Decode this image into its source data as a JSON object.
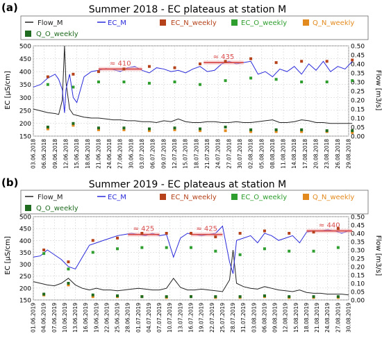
{
  "chart_data": [
    {
      "type": "line",
      "panel_label": "(a)",
      "title": "Summer 2018 - EC plateaus at station M",
      "ylabel": "EC [µS/cm]",
      "y2label": "Flow [m3/s]",
      "ylim": [
        150,
        500
      ],
      "y2lim": [
        0,
        0.5
      ],
      "yticks": [
        "150",
        "200",
        "250",
        "300",
        "350",
        "400",
        "450",
        "500"
      ],
      "y2ticks": [
        "0.00",
        "0.05",
        "0.10",
        "0.15",
        "0.20",
        "0.25",
        "0.30",
        "0.35",
        "0.40",
        "0.45",
        "0.50"
      ],
      "x_tick_labels": [
        "03.06.2018",
        "06.06.2018",
        "09.06.2018",
        "12.06.2018",
        "15.06.2018",
        "18.06.2018",
        "21.06.2018",
        "24.06.2018",
        "27.06.2018",
        "30.06.2018",
        "03.07.2018",
        "06.07.2018",
        "09.07.2018",
        "12.07.2018",
        "15.07.2018",
        "18.07.2018",
        "21.07.2018",
        "24.07.2018",
        "27.07.2018",
        "30.07.2018",
        "02.08.2018",
        "05.08.2018",
        "08.08.2018",
        "11.08.2018",
        "14.08.2018",
        "17.08.2018",
        "20.08.2018",
        "23.08.2018",
        "26.08.2018",
        "29.08.2018"
      ],
      "legend": [
        "Flow_M",
        "EC_M",
        "EC_N_weekly",
        "EC_O_weekly",
        "Q_N_weekly",
        "Q_O_weekly"
      ],
      "colors": {
        "flow": "#222222",
        "ec": "#2a2adb",
        "ec_n": "#b5421a",
        "ec_o": "#2e9e2e",
        "q_n": "#e38a1e",
        "q_o": "#1f6b1f",
        "plateau": "#d94a4a"
      },
      "plateaus": [
        {
          "label": "≈ 410",
          "value": 410,
          "day_start": 18,
          "day_end": 30
        },
        {
          "label": "≈ 435",
          "value": 435,
          "day_start": 47,
          "day_end": 58
        }
      ],
      "series": [
        {
          "name": "EC_M",
          "axis": "left",
          "x": [
            0,
            2,
            4,
            6,
            7,
            8,
            8.6,
            9,
            10,
            11,
            12,
            14,
            16,
            18,
            20,
            22,
            24,
            26,
            28,
            30,
            32,
            34,
            36,
            38,
            40,
            42,
            44,
            46,
            48,
            50,
            52,
            54,
            56,
            58,
            60,
            62,
            64,
            66,
            68,
            70,
            72,
            74,
            76,
            78,
            80,
            82,
            84,
            86,
            88
          ],
          "y": [
            340,
            350,
            375,
            390,
            370,
            330,
            240,
            330,
            390,
            300,
            280,
            380,
            400,
            405,
            412,
            408,
            400,
            415,
            420,
            405,
            395,
            415,
            410,
            400,
            405,
            395,
            410,
            420,
            400,
            405,
            430,
            440,
            430,
            435,
            440,
            390,
            400,
            380,
            410,
            400,
            420,
            390,
            430,
            405,
            440,
            400,
            420,
            410,
            440
          ]
        },
        {
          "name": "Flow_M",
          "axis": "right",
          "x": [
            0,
            2,
            4,
            6,
            7,
            8,
            8.6,
            9,
            10,
            11,
            12,
            14,
            16,
            18,
            20,
            22,
            24,
            26,
            28,
            30,
            32,
            34,
            36,
            38,
            40,
            42,
            44,
            46,
            48,
            50,
            52,
            54,
            56,
            58,
            60,
            62,
            64,
            66,
            68,
            70,
            72,
            74,
            76,
            78,
            80,
            82,
            84,
            86,
            88
          ],
          "y": [
            0.15,
            0.14,
            0.13,
            0.125,
            0.12,
            0.2,
            0.5,
            0.3,
            0.15,
            0.12,
            0.115,
            0.105,
            0.1,
            0.1,
            0.095,
            0.09,
            0.09,
            0.085,
            0.085,
            0.08,
            0.08,
            0.075,
            0.085,
            0.08,
            0.095,
            0.08,
            0.075,
            0.075,
            0.08,
            0.08,
            0.075,
            0.075,
            0.08,
            0.075,
            0.075,
            0.08,
            0.085,
            0.09,
            0.075,
            0.075,
            0.08,
            0.09,
            0.085,
            0.075,
            0.075,
            0.07,
            0.07,
            0.07,
            0.07
          ]
        },
        {
          "name": "EC_N_weekly",
          "axis": "left",
          "x": [
            4,
            11,
            18,
            25,
            32,
            39,
            46,
            53,
            60,
            67,
            74,
            81,
            88
          ],
          "y": [
            380,
            390,
            400,
            410,
            420,
            415,
            430,
            440,
            450,
            435,
            440,
            440,
            445
          ]
        },
        {
          "name": "EC_O_weekly",
          "axis": "left",
          "x": [
            4,
            11,
            18,
            25,
            32,
            39,
            46,
            53,
            60,
            67,
            74,
            81,
            88
          ],
          "y": [
            350,
            340,
            360,
            360,
            355,
            360,
            350,
            365,
            375,
            370,
            360,
            360,
            365
          ]
        },
        {
          "name": "Q_N_weekly",
          "axis": "right",
          "x": [
            4,
            11,
            18,
            25,
            32,
            39,
            46,
            53,
            60,
            67,
            74,
            81,
            88
          ],
          "y": [
            0.04,
            0.06,
            0.035,
            0.035,
            0.03,
            0.035,
            0.03,
            0.03,
            0.025,
            0.025,
            0.025,
            0.025,
            0.02
          ]
        },
        {
          "name": "Q_O_weekly",
          "axis": "right",
          "x": [
            4,
            11,
            18,
            25,
            32,
            39,
            46,
            53,
            60,
            67,
            74,
            81,
            88
          ],
          "y": [
            0.05,
            0.07,
            0.045,
            0.045,
            0.04,
            0.045,
            0.04,
            0.05,
            0.035,
            0.035,
            0.035,
            0.03,
            0.03
          ]
        }
      ]
    },
    {
      "type": "line",
      "panel_label": "(b)",
      "title": "Summer 2019 - EC plateaus at station M",
      "ylabel": "EC [µS/cm]",
      "y2label": "Flow [m3/s]",
      "ylim": [
        150,
        500
      ],
      "y2lim": [
        0,
        0.5
      ],
      "yticks": [
        "150",
        "200",
        "250",
        "300",
        "350",
        "400",
        "450",
        "500"
      ],
      "y2ticks": [
        "0.00",
        "0.05",
        "0.10",
        "0.15",
        "0.20",
        "0.25",
        "0.30",
        "0.35",
        "0.40",
        "0.45",
        "0.50"
      ],
      "x_tick_labels": [
        "01.06.2019",
        "04.06.2019",
        "07.06.2019",
        "10.06.2019",
        "13.06.2019",
        "16.06.2019",
        "19.06.2019",
        "22.06.2019",
        "25.06.2019",
        "28.06.2019",
        "01.07.2019",
        "04.07.2019",
        "07.07.2019",
        "10.07.2019",
        "13.07.2019",
        "16.07.2019",
        "19.07.2019",
        "22.07.2019",
        "25.07.2019",
        "28.07.2019",
        "31.07.2019",
        "03.08.2019",
        "06.08.2019",
        "09.08.2019",
        "12.08.2019",
        "15.08.2019",
        "18.08.2019",
        "21.08.2019",
        "24.08.2019",
        "27.08.2019",
        "30.08.2019"
      ],
      "legend": [
        "Flow_M",
        "EC_M",
        "EC_N_weekly",
        "EC_O_weekly",
        "Q_N_weekly",
        "Q_O_weekly"
      ],
      "colors": {
        "flow": "#222222",
        "ec": "#2a2adb",
        "ec_n": "#b5421a",
        "ec_o": "#2e9e2e",
        "q_n": "#e38a1e",
        "q_o": "#1f6b1f",
        "plateau": "#d94a4a"
      },
      "plateaus": [
        {
          "label": "≈ 425",
          "value": 425,
          "day_start": 27,
          "day_end": 36
        },
        {
          "label": "≈ 425",
          "value": 425,
          "day_start": 45,
          "day_end": 54
        },
        {
          "label": "≈ 440",
          "value": 440,
          "day_start": 78,
          "day_end": 91
        }
      ],
      "series": [
        {
          "name": "EC_M",
          "axis": "left",
          "x": [
            0,
            2,
            4,
            6,
            8,
            10,
            12,
            14,
            16,
            18,
            20,
            22,
            24,
            26,
            28,
            30,
            32,
            34,
            36,
            38,
            40,
            42,
            44,
            46,
            48,
            50,
            52,
            54,
            56,
            57,
            58,
            60,
            62,
            64,
            66,
            68,
            70,
            72,
            74,
            76,
            78,
            80,
            82,
            84,
            86,
            88,
            90
          ],
          "y": [
            330,
            335,
            360,
            340,
            320,
            290,
            280,
            330,
            380,
            390,
            400,
            410,
            420,
            425,
            430,
            425,
            420,
            430,
            420,
            425,
            330,
            410,
            430,
            425,
            420,
            425,
            430,
            460,
            310,
            260,
            400,
            410,
            420,
            390,
            430,
            420,
            400,
            410,
            420,
            390,
            435,
            440,
            440,
            445,
            440,
            430,
            440
          ]
        },
        {
          "name": "Flow_M",
          "axis": "right",
          "x": [
            0,
            2,
            4,
            6,
            8,
            10,
            12,
            14,
            16,
            18,
            20,
            22,
            24,
            26,
            28,
            30,
            32,
            34,
            36,
            38,
            40,
            42,
            44,
            46,
            48,
            50,
            52,
            54,
            56,
            57,
            58,
            60,
            62,
            64,
            66,
            68,
            70,
            72,
            74,
            76,
            78,
            80,
            82,
            84,
            86,
            88,
            90
          ],
          "y": [
            0.11,
            0.1,
            0.09,
            0.085,
            0.1,
            0.13,
            0.09,
            0.07,
            0.06,
            0.07,
            0.06,
            0.06,
            0.055,
            0.06,
            0.065,
            0.07,
            0.065,
            0.06,
            0.06,
            0.07,
            0.13,
            0.075,
            0.06,
            0.06,
            0.065,
            0.06,
            0.055,
            0.05,
            0.12,
            0.3,
            0.1,
            0.08,
            0.07,
            0.065,
            0.08,
            0.07,
            0.06,
            0.055,
            0.05,
            0.06,
            0.045,
            0.04,
            0.04,
            0.035,
            0.035,
            0.035,
            0.03
          ]
        },
        {
          "name": "EC_N_weekly",
          "axis": "left",
          "x": [
            3,
            10,
            17,
            24,
            31,
            38,
            45,
            52,
            59,
            66,
            73,
            80,
            87
          ],
          "y": [
            360,
            310,
            400,
            410,
            430,
            430,
            430,
            415,
            430,
            440,
            430,
            435,
            450
          ]
        },
        {
          "name": "EC_O_weekly",
          "axis": "left",
          "x": [
            3,
            10,
            17,
            24,
            31,
            38,
            45,
            52,
            59,
            66,
            73,
            80,
            87
          ],
          "y": [
            345,
            280,
            350,
            365,
            370,
            370,
            370,
            355,
            340,
            365,
            355,
            355,
            370
          ]
        },
        {
          "name": "Q_N_weekly",
          "axis": "right",
          "x": [
            3,
            10,
            17,
            24,
            31,
            38,
            45,
            52,
            59,
            66,
            73,
            80,
            87
          ],
          "y": [
            0.03,
            0.09,
            0.02,
            0.02,
            0.02,
            0.015,
            0.02,
            0.015,
            0.015,
            0.02,
            0.015,
            0.015,
            0.015
          ]
        },
        {
          "name": "Q_O_weekly",
          "axis": "right",
          "x": [
            3,
            10,
            17,
            24,
            31,
            38,
            45,
            52,
            59,
            66,
            73,
            80,
            87
          ],
          "y": [
            0.035,
            0.1,
            0.03,
            0.025,
            0.02,
            0.02,
            0.02,
            0.02,
            0.02,
            0.025,
            0.02,
            0.02,
            0.02
          ]
        }
      ]
    }
  ]
}
